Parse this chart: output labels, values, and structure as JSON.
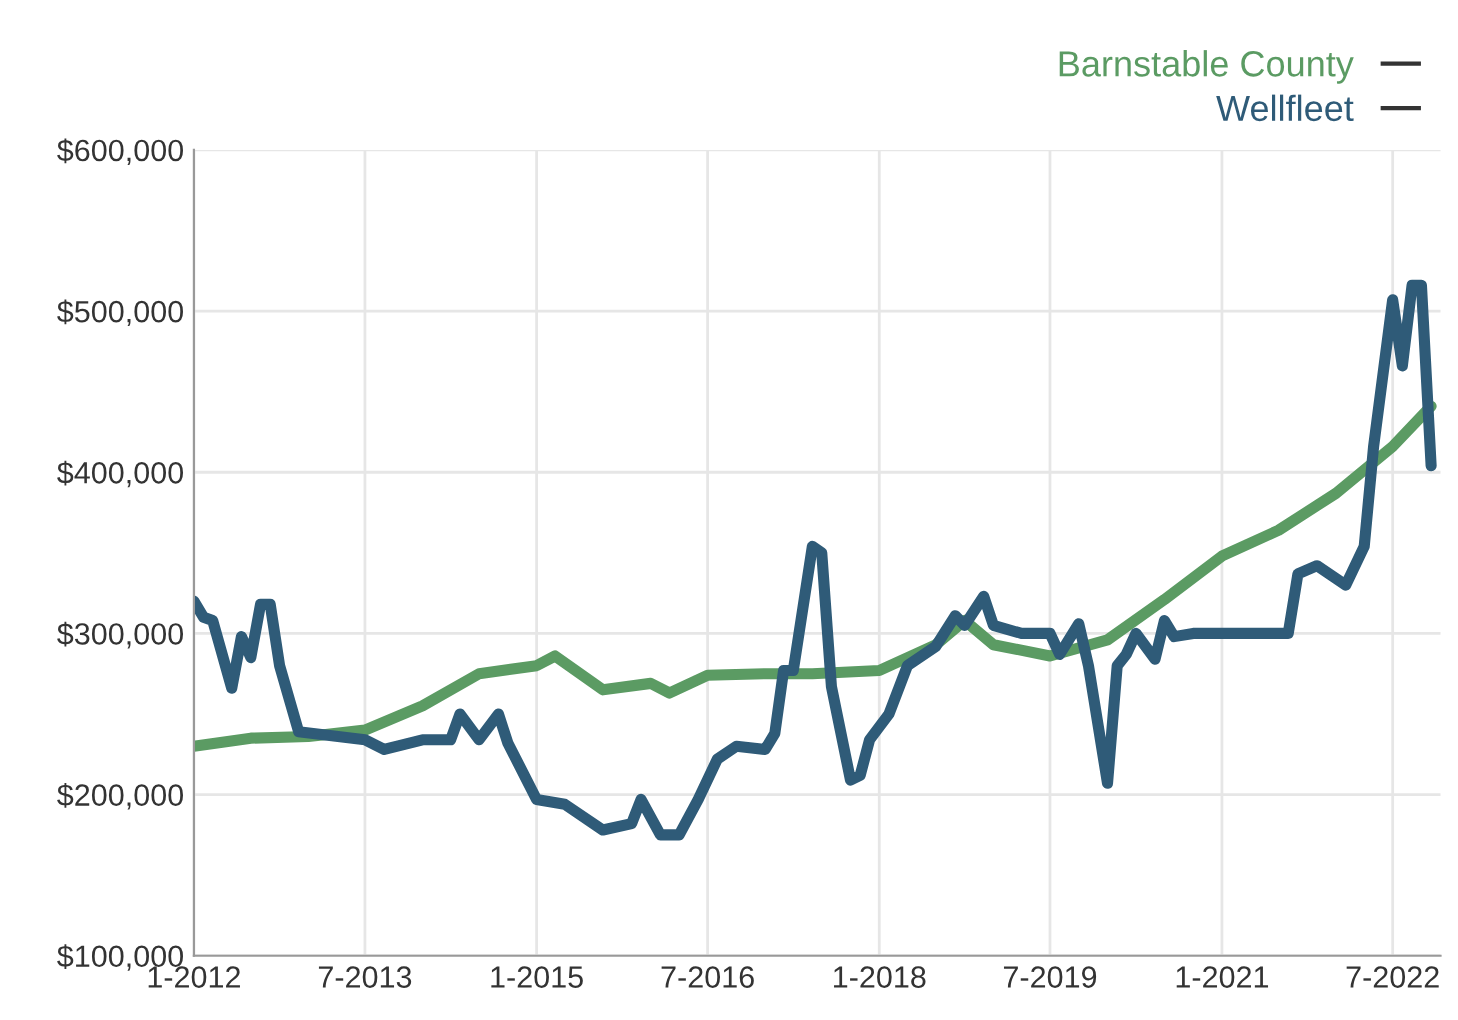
{
  "chart_data": {
    "type": "line",
    "xlim": [
      "2012-01",
      "2022-12"
    ],
    "xticks": [
      {
        "value": "2012-01",
        "label": "1-2012"
      },
      {
        "value": "2013-07",
        "label": "7-2013"
      },
      {
        "value": "2015-01",
        "label": "1-2015"
      },
      {
        "value": "2016-07",
        "label": "7-2016"
      },
      {
        "value": "2018-01",
        "label": "1-2018"
      },
      {
        "value": "2019-07",
        "label": "7-2019"
      },
      {
        "value": "2021-01",
        "label": "1-2021"
      },
      {
        "value": "2022-07",
        "label": "7-2022"
      }
    ],
    "ylim": [
      100000,
      600000
    ],
    "yticks": [
      {
        "value": 100000,
        "label": "$100,000"
      },
      {
        "value": 200000,
        "label": "$200,000"
      },
      {
        "value": 300000,
        "label": "$300,000"
      },
      {
        "value": 400000,
        "label": "$400,000"
      },
      {
        "value": 500000,
        "label": "$500,000"
      },
      {
        "value": 600000,
        "label": "$600,000"
      }
    ],
    "grid": true,
    "legend": "top right",
    "marker": "none",
    "line_style": "solid",
    "series": [
      {
        "name": "Barnstable County",
        "color": "#5b9b63",
        "x": [
          "2012-01",
          "2012-07",
          "2013-01",
          "2013-07",
          "2014-01",
          "2014-07",
          "2015-01",
          "2015-03",
          "2015-08",
          "2016-01",
          "2016-03",
          "2016-07",
          "2017-01",
          "2017-06",
          "2018-01",
          "2018-07",
          "2018-10",
          "2019-01",
          "2019-07",
          "2020-01",
          "2020-07",
          "2021-01",
          "2021-07",
          "2022-01",
          "2022-07",
          "2022-11"
        ],
        "values": [
          230000,
          235000,
          236000,
          240000,
          255000,
          275000,
          280000,
          286000,
          265000,
          269000,
          263000,
          274000,
          275000,
          275000,
          277000,
          293000,
          308000,
          293000,
          286000,
          296000,
          321000,
          348000,
          364000,
          387000,
          416000,
          441000
        ]
      },
      {
        "name": "Wellfleet",
        "color": "#2f5b78",
        "x": [
          "2012-01",
          "2012-02",
          "2012-03",
          "2012-05",
          "2012-06",
          "2012-07",
          "2012-08",
          "2012-09",
          "2012-10",
          "2012-12",
          "2013-07",
          "2013-09",
          "2014-01",
          "2014-04",
          "2014-05",
          "2014-07",
          "2014-09",
          "2014-10",
          "2015-01",
          "2015-04",
          "2015-08",
          "2015-11",
          "2015-12",
          "2016-02",
          "2016-04",
          "2016-06",
          "2016-08",
          "2016-10",
          "2017-01",
          "2017-02",
          "2017-03",
          "2017-04",
          "2017-06",
          "2017-07",
          "2017-08",
          "2017-10",
          "2017-11",
          "2017-12",
          "2018-02",
          "2018-04",
          "2018-07",
          "2018-09",
          "2018-10",
          "2018-12",
          "2019-01",
          "2019-04",
          "2019-07",
          "2019-08",
          "2019-10",
          "2019-11",
          "2020-01",
          "2020-02",
          "2020-03",
          "2020-04",
          "2020-06",
          "2020-07",
          "2020-08",
          "2020-10",
          "2021-08",
          "2021-09",
          "2021-11",
          "2022-02",
          "2022-04",
          "2022-05",
          "2022-07",
          "2022-08",
          "2022-09",
          "2022-10",
          "2022-11"
        ],
        "values": [
          320000,
          310000,
          308000,
          266000,
          298000,
          285000,
          318000,
          318000,
          280000,
          239000,
          234000,
          228000,
          234000,
          234000,
          250000,
          234000,
          250000,
          232000,
          197000,
          194000,
          178000,
          182000,
          197000,
          175000,
          175000,
          197000,
          222000,
          230000,
          228000,
          238000,
          277000,
          277000,
          354000,
          350000,
          267000,
          209000,
          212000,
          234000,
          250000,
          280000,
          292000,
          311000,
          305000,
          323000,
          305000,
          300000,
          300000,
          287000,
          306000,
          280000,
          207000,
          280000,
          287000,
          300000,
          284000,
          308000,
          298000,
          300000,
          300000,
          337000,
          342000,
          330000,
          354000,
          416000,
          507000,
          466000,
          516000,
          516000,
          404000
        ]
      }
    ]
  }
}
